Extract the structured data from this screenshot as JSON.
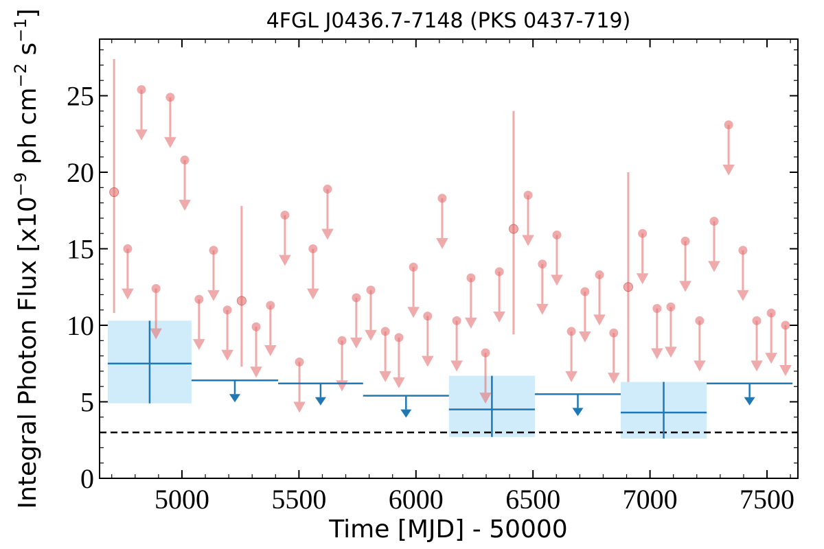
{
  "chart_data": {
    "type": "lightcurve",
    "title": "4FGL J0436.7-7148 (PKS 0437-719)",
    "xlabel": "Time [MJD] - 50000",
    "ylabel": [
      {
        "text": "Integral Photon Flux [x10"
      },
      {
        "text": "−9",
        "sup": true
      },
      {
        "text": " ph cm"
      },
      {
        "text": "−2",
        "sup": true
      },
      {
        "text": " s"
      },
      {
        "text": "−1",
        "sup": true
      },
      {
        "text": "]"
      }
    ],
    "xlim": [
      4648,
      7632
    ],
    "ylim": [
      0,
      28.7
    ],
    "xticks": [
      5000,
      5500,
      6000,
      6500,
      7000,
      7500
    ],
    "yticks": [
      0,
      5,
      10,
      15,
      20,
      25
    ],
    "x_minor_step": 100,
    "y_minor_step": 1,
    "reference_line": 3,
    "series": [
      {
        "color": "#e57373",
        "x": [
          4710,
          4768,
          4827,
          4889,
          4950,
          5012,
          5073,
          5135,
          5194,
          5255,
          5317,
          5378,
          5440,
          5502,
          5560,
          5622,
          5684,
          5745,
          5807,
          5869,
          5927,
          5989,
          6050,
          6112,
          6174,
          6235,
          6297,
          6356,
          6417,
          6479,
          6540,
          6602,
          6664,
          6722,
          6784,
          6845,
          6907,
          6968,
          7030,
          7089,
          7151,
          7212,
          7274,
          7336,
          7397,
          7456,
          7518,
          7579
        ],
        "values": [
          18.7,
          15.0,
          25.4,
          12.4,
          24.9,
          20.8,
          11.7,
          14.9,
          11.0,
          11.6,
          9.9,
          11.3,
          17.2,
          7.6,
          15.0,
          18.9,
          9.0,
          11.8,
          12.3,
          9.6,
          9.2,
          13.8,
          10.6,
          18.3,
          10.3,
          13.1,
          8.2,
          13.5,
          16.3,
          18.5,
          14.0,
          15.9,
          9.6,
          12.2,
          13.3,
          9.5,
          12.5,
          16.0,
          11.1,
          11.2,
          15.5,
          10.3,
          16.8,
          23.1,
          14.9,
          10.3,
          10.8,
          10.0
        ],
        "upper_limit": [
          false,
          true,
          true,
          true,
          true,
          true,
          true,
          true,
          true,
          false,
          true,
          true,
          true,
          true,
          true,
          true,
          true,
          true,
          true,
          true,
          true,
          true,
          true,
          true,
          true,
          true,
          true,
          true,
          false,
          true,
          true,
          true,
          true,
          true,
          true,
          true,
          false,
          true,
          true,
          true,
          true,
          true,
          true,
          true,
          true,
          true,
          true,
          true
        ],
        "lower": [
          10.8,
          null,
          null,
          null,
          null,
          null,
          null,
          null,
          null,
          7.3,
          null,
          null,
          null,
          null,
          null,
          null,
          null,
          null,
          null,
          null,
          null,
          null,
          null,
          null,
          null,
          null,
          null,
          null,
          9.4,
          null,
          null,
          null,
          null,
          null,
          null,
          null,
          6.3,
          null,
          null,
          null,
          null,
          null,
          null,
          null,
          null,
          null,
          null,
          null
        ],
        "upper": [
          27.4,
          null,
          null,
          null,
          null,
          null,
          null,
          null,
          null,
          17.8,
          null,
          null,
          null,
          null,
          null,
          null,
          null,
          null,
          null,
          null,
          null,
          null,
          null,
          null,
          null,
          null,
          null,
          null,
          24.0,
          null,
          null,
          null,
          null,
          null,
          null,
          null,
          20.0,
          null,
          null,
          null,
          null,
          null,
          null,
          null,
          null,
          null,
          null,
          null
        ]
      },
      {
        "color": "#1f77b4",
        "band_color": "#d0ecfb",
        "bin_edges": [
          4683,
          5041,
          5411,
          5774,
          6141,
          6508,
          6875,
          7242,
          7609
        ],
        "values": [
          7.5,
          6.4,
          6.2,
          5.4,
          4.5,
          5.5,
          4.3,
          6.2
        ],
        "upper_limit": [
          false,
          true,
          true,
          true,
          false,
          true,
          false,
          true
        ],
        "lower": [
          4.9,
          null,
          null,
          null,
          2.7,
          null,
          2.6,
          null
        ],
        "upper": [
          10.3,
          null,
          null,
          null,
          6.7,
          null,
          6.3,
          null
        ]
      }
    ]
  }
}
